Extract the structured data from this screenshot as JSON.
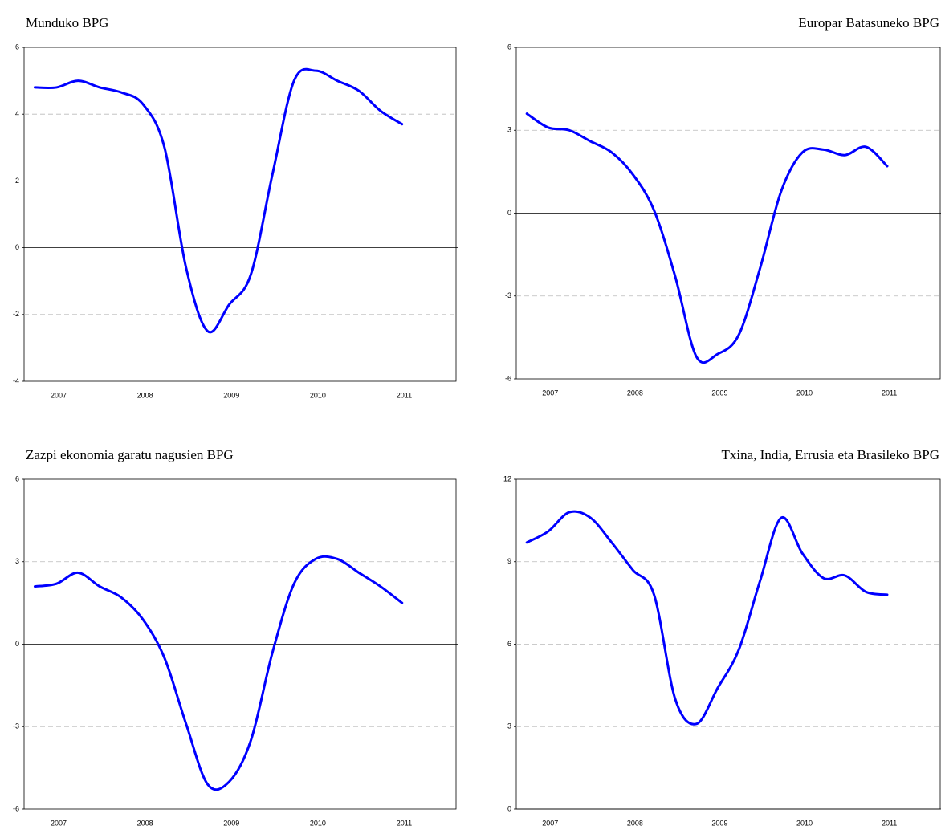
{
  "chart_data": [
    {
      "type": "line",
      "title": "Munduko BPG",
      "x": [
        2007.125,
        2007.375,
        2007.625,
        2007.875,
        2008.125,
        2008.375,
        2008.625,
        2008.875,
        2009.125,
        2009.375,
        2009.625,
        2009.875,
        2010.125,
        2010.375,
        2010.625,
        2010.875,
        2011.125,
        2011.375
      ],
      "series": [
        {
          "color": "#0000ff",
          "values": [
            4.8,
            4.8,
            5.0,
            4.8,
            4.65,
            4.3,
            3.0,
            -0.6,
            -2.5,
            -1.7,
            -0.8,
            2.2,
            5.0,
            5.3,
            5.0,
            4.7,
            4.1,
            3.7
          ]
        }
      ],
      "xlim": [
        2007,
        2012
      ],
      "xticks": [
        {
          "value": 2007.4,
          "label": "2007"
        },
        {
          "value": 2008.4,
          "label": "2008"
        },
        {
          "value": 2009.4,
          "label": "2009"
        },
        {
          "value": 2010.4,
          "label": "2010"
        },
        {
          "value": 2011.4,
          "label": "2011"
        }
      ],
      "ylim": [
        -4,
        6
      ],
      "yticks": [
        -4,
        -2,
        0,
        2,
        4,
        6
      ],
      "grid": true
    },
    {
      "type": "line",
      "title": "Europar Batasuneko BPG",
      "x": [
        2007.125,
        2007.375,
        2007.625,
        2007.875,
        2008.125,
        2008.375,
        2008.625,
        2008.875,
        2009.125,
        2009.375,
        2009.625,
        2009.875,
        2010.125,
        2010.375,
        2010.625,
        2010.875,
        2011.125,
        2011.375
      ],
      "series": [
        {
          "color": "#0000ff",
          "values": [
            3.6,
            3.1,
            3.0,
            2.6,
            2.2,
            1.4,
            0.1,
            -2.3,
            -5.2,
            -5.1,
            -4.4,
            -2.0,
            0.8,
            2.2,
            2.3,
            2.1,
            2.4,
            1.7
          ]
        }
      ],
      "xlim": [
        2007,
        2012
      ],
      "xticks": [
        {
          "value": 2007.4,
          "label": "2007"
        },
        {
          "value": 2008.4,
          "label": "2008"
        },
        {
          "value": 2009.4,
          "label": "2009"
        },
        {
          "value": 2010.4,
          "label": "2010"
        },
        {
          "value": 2011.4,
          "label": "2011"
        }
      ],
      "ylim": [
        -6,
        6
      ],
      "yticks": [
        -6,
        -3,
        0,
        3,
        6
      ],
      "grid": true
    },
    {
      "type": "line",
      "title": "Zazpi ekonomia garatu nagusien BPG",
      "x": [
        2007.125,
        2007.375,
        2007.625,
        2007.875,
        2008.125,
        2008.375,
        2008.625,
        2008.875,
        2009.125,
        2009.375,
        2009.625,
        2009.875,
        2010.125,
        2010.375,
        2010.625,
        2010.875,
        2011.125,
        2011.375
      ],
      "series": [
        {
          "color": "#0000ff",
          "values": [
            2.1,
            2.2,
            2.6,
            2.1,
            1.7,
            0.9,
            -0.5,
            -2.9,
            -5.1,
            -5.0,
            -3.5,
            -0.3,
            2.2,
            3.1,
            3.1,
            2.6,
            2.1,
            1.5
          ]
        }
      ],
      "xlim": [
        2007,
        2012
      ],
      "xticks": [
        {
          "value": 2007.4,
          "label": "2007"
        },
        {
          "value": 2008.4,
          "label": "2008"
        },
        {
          "value": 2009.4,
          "label": "2009"
        },
        {
          "value": 2010.4,
          "label": "2010"
        },
        {
          "value": 2011.4,
          "label": "2011"
        }
      ],
      "ylim": [
        -6,
        6
      ],
      "yticks": [
        -6,
        -3,
        0,
        3,
        6
      ],
      "grid": true
    },
    {
      "type": "line",
      "title": "Txina, India, Errusia eta Brasileko BPG",
      "x": [
        2007.125,
        2007.375,
        2007.625,
        2007.875,
        2008.125,
        2008.375,
        2008.625,
        2008.875,
        2009.125,
        2009.375,
        2009.625,
        2009.875,
        2010.125,
        2010.375,
        2010.625,
        2010.875,
        2011.125,
        2011.375
      ],
      "series": [
        {
          "color": "#0000ff",
          "values": [
            9.7,
            10.1,
            10.8,
            10.6,
            9.7,
            8.7,
            7.8,
            4.0,
            3.1,
            4.4,
            5.8,
            8.3,
            10.6,
            9.3,
            8.4,
            8.5,
            7.9,
            7.8
          ]
        }
      ],
      "xlim": [
        2007,
        2012
      ],
      "xticks": [
        {
          "value": 2007.4,
          "label": "2007"
        },
        {
          "value": 2008.4,
          "label": "2008"
        },
        {
          "value": 2009.4,
          "label": "2009"
        },
        {
          "value": 2010.4,
          "label": "2010"
        },
        {
          "value": 2011.4,
          "label": "2011"
        }
      ],
      "ylim": [
        0,
        12
      ],
      "yticks": [
        0,
        3,
        6,
        9,
        12
      ],
      "grid": true
    }
  ]
}
